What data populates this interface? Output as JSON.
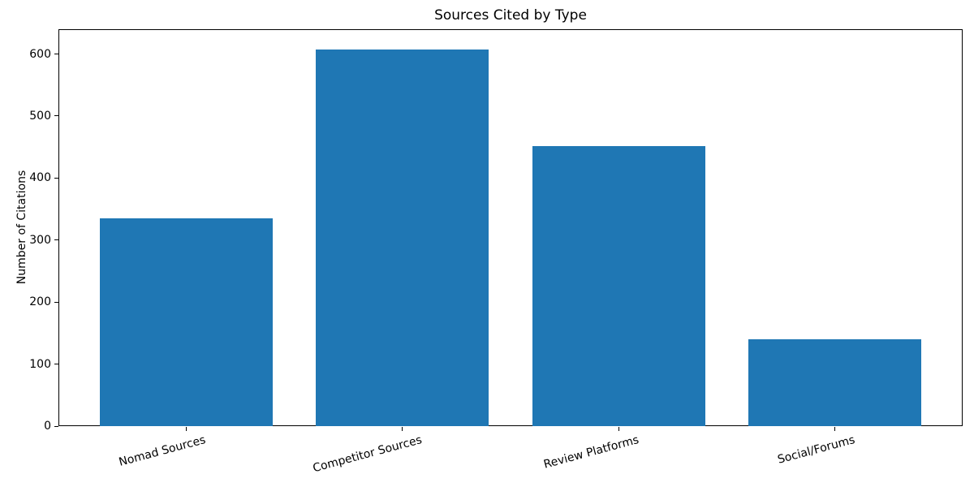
{
  "chart_data": {
    "type": "bar",
    "title": "Sources Cited by Type",
    "xlabel": "",
    "ylabel": "Number of Citations",
    "categories": [
      "Nomad Sources",
      "Competitor Sources",
      "Review Platforms",
      "Social/Forums"
    ],
    "values": [
      335,
      607,
      452,
      140
    ],
    "yticks": [
      0,
      100,
      200,
      300,
      400,
      500,
      600
    ],
    "ylim": [
      0,
      640
    ],
    "bar_color": "#1f77b4",
    "xtick_rotation_deg": 15,
    "grid": "off",
    "legend": "none"
  }
}
